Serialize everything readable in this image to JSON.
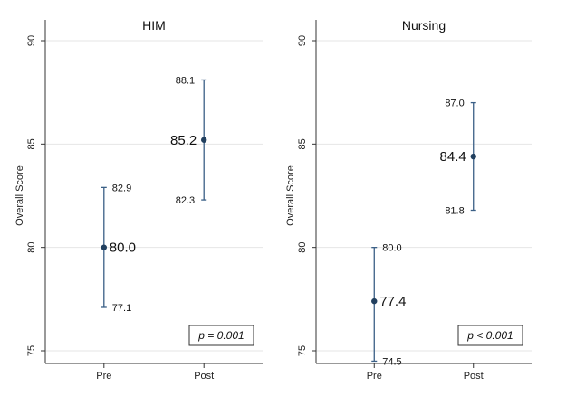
{
  "chart_data": [
    {
      "type": "scatter",
      "title": "HIM",
      "ylabel": "Overall Score",
      "xlabel": "",
      "ylim": [
        75,
        90
      ],
      "yticks": [
        75,
        80,
        85,
        90
      ],
      "categories": [
        "Pre",
        "Post"
      ],
      "points": [
        {
          "x": "Pre",
          "mean": 80.0,
          "mean_label": "80.0",
          "lower": 77.1,
          "lower_label": "77.1",
          "upper": 82.9,
          "upper_label": "82.9"
        },
        {
          "x": "Post",
          "mean": 85.2,
          "mean_label": "85.2",
          "lower": 82.3,
          "lower_label": "82.3",
          "upper": 88.1,
          "upper_label": "88.1"
        }
      ],
      "annotation": "p = 0.001",
      "annotation_position": "bottom-right",
      "grid": true,
      "color": "#3a5f86"
    },
    {
      "type": "scatter",
      "title": "Nursing",
      "ylabel": "Overall Score",
      "xlabel": "",
      "ylim": [
        75,
        90
      ],
      "yticks": [
        75,
        80,
        85,
        90
      ],
      "categories": [
        "Pre",
        "Post"
      ],
      "points": [
        {
          "x": "Pre",
          "mean": 77.4,
          "mean_label": "77.4",
          "lower": 74.5,
          "lower_label": "74.5",
          "upper": 80.0,
          "upper_label": "80.0"
        },
        {
          "x": "Post",
          "mean": 84.4,
          "mean_label": "84.4",
          "lower": 81.8,
          "lower_label": "81.8",
          "upper": 87.0,
          "upper_label": "87.0"
        }
      ],
      "annotation": "p < 0.001",
      "annotation_position": "bottom-right",
      "grid": true,
      "color": "#3a5f86"
    }
  ]
}
